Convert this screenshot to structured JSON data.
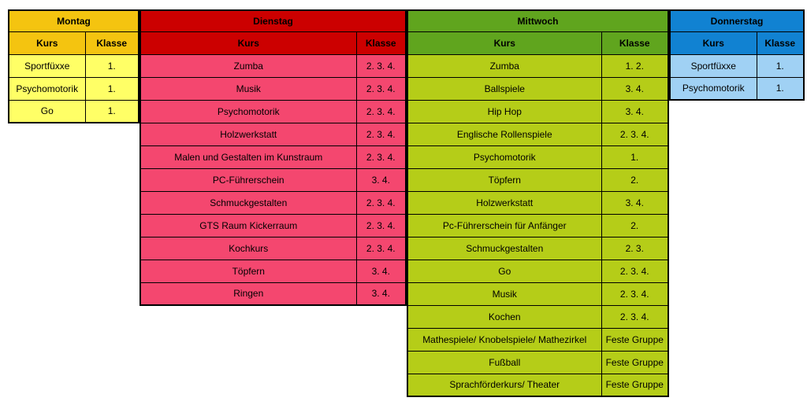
{
  "schedule": {
    "column_headers": [
      "Kurs",
      "Klasse"
    ],
    "days": [
      {
        "name": "Montag",
        "header_color": "#F4C410",
        "row_color": "#FFFF66",
        "kurs_width": 97,
        "klasse_width": 68,
        "rows": [
          [
            "Sportfüxxe",
            "1."
          ],
          [
            "Psychomotorik",
            "1."
          ],
          [
            "Go",
            "1."
          ]
        ]
      },
      {
        "name": "Dienstag",
        "header_color": "#CC0000",
        "row_color": "#F4476F",
        "kurs_width": 274,
        "klasse_width": 63,
        "rows": [
          [
            "Zumba",
            "2. 3. 4."
          ],
          [
            "Musik",
            "2. 3. 4."
          ],
          [
            "Psychomotorik",
            "2. 3. 4."
          ],
          [
            "Holzwerkstatt",
            "2. 3. 4."
          ],
          [
            "Malen und Gestalten im Kunstraum",
            "2. 3. 4."
          ],
          [
            "PC-Führerschein",
            "3. 4."
          ],
          [
            "Schmuckgestalten",
            "2. 3. 4."
          ],
          [
            "GTS Raum Kickerraum",
            "2. 3. 4."
          ],
          [
            "Kochkurs",
            "2. 3. 4."
          ],
          [
            "Töpfern",
            "3. 4."
          ],
          [
            "Ringen",
            "3. 4."
          ]
        ]
      },
      {
        "name": "Mittwoch",
        "header_color": "#60A51E",
        "row_color": "#B5CD18",
        "kurs_width": 246,
        "klasse_width": 85,
        "rows": [
          [
            "Zumba",
            "1. 2."
          ],
          [
            "Ballspiele",
            "3. 4."
          ],
          [
            "Hip Hop",
            "3. 4."
          ],
          [
            "Englische Rollenspiele",
            "2. 3. 4."
          ],
          [
            "Psychomotorik",
            "1."
          ],
          [
            "Töpfern",
            "2."
          ],
          [
            "Holzwerkstatt",
            "3. 4."
          ],
          [
            "Pc-Führerschein für Anfänger",
            "2."
          ],
          [
            "Schmuckgestalten",
            "2. 3."
          ],
          [
            "Go",
            "2. 3. 4."
          ],
          [
            "Musik",
            "2. 3. 4."
          ],
          [
            "Kochen",
            "2. 3. 4."
          ],
          [
            "Mathespiele/ Knobelspiele/ Mathezirkel",
            "Feste Gruppe"
          ],
          [
            "Fußball",
            "Feste Gruppe"
          ],
          [
            "Sprachförderkurs/ Theater",
            "Feste Gruppe"
          ]
        ]
      },
      {
        "name": "Donnerstag",
        "header_color": "#1182D2",
        "row_color": "#A0D1F4",
        "kurs_width": 110,
        "klasse_width": 60,
        "rows": [
          [
            "Sportfüxxe",
            "1."
          ],
          [
            "Psychomotorik",
            "1."
          ]
        ]
      }
    ]
  }
}
